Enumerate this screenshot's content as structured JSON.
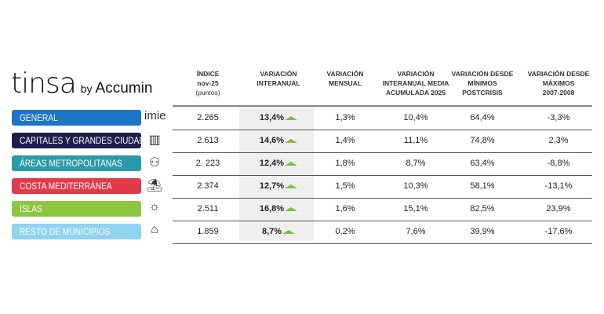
{
  "logo": {
    "brand": "tinsa",
    "by": "by",
    "partner": "Accumin"
  },
  "headers": [
    {
      "l1": "ÍNDICE",
      "l2": "nov-25",
      "l3": "(puntos)"
    },
    {
      "l1": "VARIACIÓN",
      "l2": "INTERANUAL",
      "l3": ""
    },
    {
      "l1": "VARIACIÓN",
      "l2": "MENSUAL",
      "l3": ""
    },
    {
      "l1": "VARIACIÓN",
      "l2": "INTERANUAL MEDIA",
      "l3": "ACUMULADA 2025"
    },
    {
      "l1": "VARIACIÓN DESDE",
      "l2": "MÍNIMOS",
      "l3": "POSTCRISIS"
    },
    {
      "l1": "VARIACIÓN DESDE",
      "l2": "MÁXIMOS",
      "l3": "2007-2008"
    }
  ],
  "rows": [
    {
      "label": "GENERAL",
      "color": "#1b74c5",
      "icon": "imie-logo-icon",
      "icon_text": "imie",
      "vals": [
        "2.265",
        "13,4%",
        "1,3%",
        "10,4%",
        "64,4%",
        "-3,3%"
      ],
      "trend": "up"
    },
    {
      "label": "CAPITALES Y GRANDES CIUDADES",
      "color": "#1e1f4b",
      "icon": "buildings-icon",
      "vals": [
        "2.613",
        "14,6%",
        "1,4%",
        "11,1%",
        "74,8%",
        "2,3%"
      ],
      "trend": "up"
    },
    {
      "label": "ÁREAS METROPOLITANAS",
      "color": "#2b9aa9",
      "icon": "network-icon",
      "vals": [
        "2. 223",
        "12,4%",
        "1,8%",
        "8,7%",
        "63,4%",
        "-8,8%"
      ],
      "trend": "up"
    },
    {
      "label": "COSTA MEDITERRÁNEA",
      "color": "#e03a4b",
      "icon": "beach-umbrella-icon",
      "vals": [
        "2.374",
        "12,7%",
        "1,5%",
        "10,3%",
        "58,1%",
        "-13,1%"
      ],
      "trend": "up"
    },
    {
      "label": "ISLAS",
      "color": "#8dc63f",
      "icon": "island-icon",
      "vals": [
        "2.511",
        "16,8%",
        "1,6%",
        "15,1%",
        "82,5%",
        "23,9%"
      ],
      "trend": "up"
    },
    {
      "label": "RESTO DE MUNICIPIOS",
      "color": "#8fd3f1",
      "icon": "house-icon",
      "vals": [
        "1.859",
        "8,7%",
        "0,2%",
        "7,6%",
        "39,9%",
        "-17,6%"
      ],
      "trend": "up"
    }
  ],
  "trend_color": "#7ac143"
}
